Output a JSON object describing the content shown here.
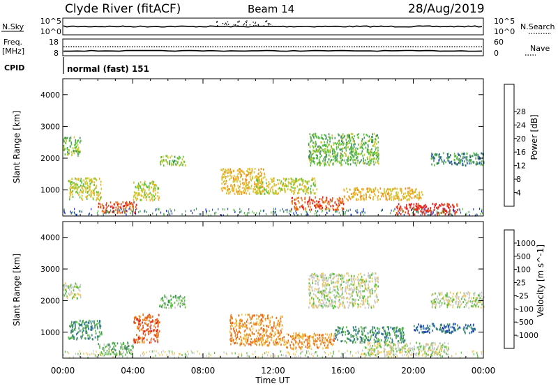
{
  "header": {
    "station": "Clyde River (fitACF)",
    "beam": "Beam 14",
    "date": "28/Aug/2019"
  },
  "status_panels": {
    "nsky_label": "N.Sky",
    "nsearch_label": "N.Search",
    "noise_ticks_left": [
      "10^5",
      "10^0"
    ],
    "noise_ticks_right": [
      "10^5",
      "10^0"
    ],
    "freq_label_top": "Freq.",
    "freq_label_unit": "[MHz]",
    "freq_ticks": [
      "18",
      "8"
    ],
    "nave_label": "Nave",
    "nave_ticks": [
      "60",
      "0"
    ],
    "cpid_label": "CPID",
    "cpid_value": "normal (fast) 151"
  },
  "chart_data": [
    {
      "type": "heatmap",
      "panel": "power",
      "ylabel": "Slant Range [km]",
      "xlabel": "",
      "x_range_hours": [
        0,
        24
      ],
      "ylim": [
        180,
        4500
      ],
      "yticks": [
        "1000",
        "2000",
        "3000",
        "4000"
      ],
      "colorbar": {
        "label": "Power [dB]",
        "ticks": [
          "4",
          "8",
          "12",
          "16",
          "20",
          "24",
          "28"
        ],
        "colors": [
          "#1428e6",
          "#2a55aa",
          "#3f8f5f",
          "#56c23c",
          "#c8c828",
          "#f0b428",
          "#f08a1e",
          "#e85a14",
          "#e61e1e"
        ]
      },
      "blobs": [
        {
          "t0": 0.0,
          "t1": 1.0,
          "r0": 2100,
          "r1": 2700,
          "level": 3
        },
        {
          "t0": 0.3,
          "t1": 2.2,
          "r0": 700,
          "r1": 1400,
          "level": 4
        },
        {
          "t0": 2.0,
          "t1": 4.2,
          "r0": 300,
          "r1": 650,
          "level": 7
        },
        {
          "t0": 4.0,
          "t1": 5.5,
          "r0": 700,
          "r1": 1300,
          "level": 4
        },
        {
          "t0": 5.5,
          "t1": 7.0,
          "r0": 1800,
          "r1": 2100,
          "level": 3
        },
        {
          "t0": 9.0,
          "t1": 11.5,
          "r0": 900,
          "r1": 1700,
          "level": 5
        },
        {
          "t0": 11.0,
          "t1": 14.5,
          "r0": 900,
          "r1": 1400,
          "level": 4
        },
        {
          "t0": 13.0,
          "t1": 16.0,
          "r0": 400,
          "r1": 800,
          "level": 7
        },
        {
          "t0": 14.0,
          "t1": 18.0,
          "r0": 1800,
          "r1": 2800,
          "level": 3
        },
        {
          "t0": 16.0,
          "t1": 20.5,
          "r0": 700,
          "r1": 1100,
          "level": 5
        },
        {
          "t0": 19.0,
          "t1": 22.5,
          "r0": 250,
          "r1": 600,
          "level": 8
        },
        {
          "t0": 21.0,
          "t1": 24.0,
          "r0": 1800,
          "r1": 2200,
          "level": 2
        }
      ]
    },
    {
      "type": "heatmap",
      "panel": "velocity",
      "ylabel": "Slant Range [km]",
      "xlabel": "Time UT",
      "x_range_hours": [
        0,
        24
      ],
      "xticks": [
        "00:00",
        "04:00",
        "08:00",
        "12:00",
        "16:00",
        "20:00",
        "00:00"
      ],
      "ylim": [
        180,
        4500
      ],
      "yticks": [
        "1000",
        "2000",
        "3000",
        "4000"
      ],
      "colorbar": {
        "label": "Velocity [m s^-1]",
        "ticks": [
          "1000",
          "500",
          "100",
          "25",
          "-25",
          "-100",
          "-500",
          "-1000"
        ],
        "colors": [
          "#1e3cb4",
          "#2a6fa0",
          "#3f8f5f",
          "#56c23c",
          "#c8c8c8",
          "#f0c850",
          "#f08c1e",
          "#e8641e",
          "#e61e1e"
        ]
      },
      "blobs": [
        {
          "t0": 0.3,
          "t1": 2.2,
          "r0": 800,
          "r1": 1400,
          "level": 2
        },
        {
          "t0": 2.0,
          "t1": 4.0,
          "r0": 300,
          "r1": 700,
          "level": 3
        },
        {
          "t0": 4.0,
          "t1": 5.5,
          "r0": 700,
          "r1": 1600,
          "level": 7
        },
        {
          "t0": 5.5,
          "t1": 7.0,
          "r0": 1800,
          "r1": 2200,
          "level": 3
        },
        {
          "t0": 0.0,
          "t1": 1.0,
          "r0": 2100,
          "r1": 2600,
          "level": 4
        },
        {
          "t0": 9.5,
          "t1": 12.5,
          "r0": 600,
          "r1": 1600,
          "level": 6
        },
        {
          "t0": 12.5,
          "t1": 15.5,
          "r0": 500,
          "r1": 1000,
          "level": 6
        },
        {
          "t0": 14.0,
          "t1": 18.0,
          "r0": 1800,
          "r1": 2900,
          "level": 4
        },
        {
          "t0": 15.5,
          "t1": 19.5,
          "r0": 700,
          "r1": 1200,
          "level": 2
        },
        {
          "t0": 17.0,
          "t1": 22.0,
          "r0": 300,
          "r1": 700,
          "level": 4
        },
        {
          "t0": 20.0,
          "t1": 23.5,
          "r0": 1000,
          "r1": 1300,
          "level": 1
        },
        {
          "t0": 21.0,
          "t1": 24.0,
          "r0": 1800,
          "r1": 2300,
          "level": 4
        }
      ]
    }
  ]
}
